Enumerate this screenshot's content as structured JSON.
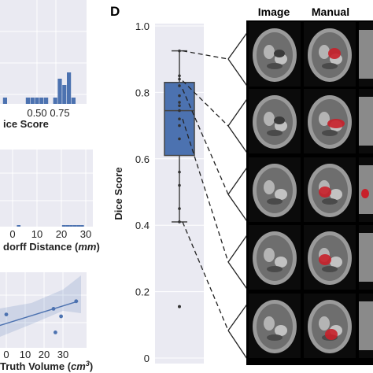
{
  "panel_letter": "D",
  "image_headers": [
    "Image",
    "Manual"
  ],
  "chart_data": [
    {
      "type": "bar",
      "panel": "histogram-dice",
      "xlabel": "Dice Score",
      "xlabel_visible": "ice Score",
      "x_ticks": [
        "0.50",
        "0.75"
      ],
      "bins": [
        {
          "x": 0.15,
          "count": 1
        },
        {
          "x": 0.4,
          "count": 1
        },
        {
          "x": 0.45,
          "count": 1
        },
        {
          "x": 0.5,
          "count": 1
        },
        {
          "x": 0.55,
          "count": 1
        },
        {
          "x": 0.6,
          "count": 1
        },
        {
          "x": 0.7,
          "count": 1
        },
        {
          "x": 0.75,
          "count": 4
        },
        {
          "x": 0.8,
          "count": 3
        },
        {
          "x": 0.85,
          "count": 5
        },
        {
          "x": 0.9,
          "count": 1
        }
      ],
      "color": "#4c72b0"
    },
    {
      "type": "bar",
      "panel": "histogram-hausdorff",
      "xlabel": "Hausdorff Distance (mm)",
      "xlabel_visible_pre": "dorff Distance (",
      "xlabel_unit": "mm",
      "xlabel_visible_post": ")",
      "x_ticks": [
        "0",
        "10",
        "20",
        "30"
      ],
      "xlim": [
        -3,
        35
      ],
      "bins": [
        {
          "x": 2.5,
          "count": 1
        },
        {
          "x": 21,
          "count": 1
        },
        {
          "x": 22.5,
          "count": 1
        },
        {
          "x": 24,
          "count": 1
        },
        {
          "x": 25.5,
          "count": 1
        },
        {
          "x": 27,
          "count": 1
        },
        {
          "x": 28.5,
          "count": 1
        }
      ],
      "color": "#4c72b0"
    },
    {
      "type": "scatter",
      "panel": "scatter-volume",
      "xlabel": "Truth Volume (cm3)",
      "xlabel_visible_pre": "Truth Volume (",
      "xlabel_unit": "cm",
      "xlabel_sup": "3",
      "xlabel_visible_post": ")",
      "x_ticks": [
        "0",
        "10",
        "20",
        "30"
      ],
      "xlim": [
        -4,
        40
      ],
      "points": [
        {
          "x": 0,
          "y": 0.52
        },
        {
          "x": 25,
          "y": 0.58
        },
        {
          "x": 29,
          "y": 0.5
        },
        {
          "x": 26,
          "y": 0.33
        },
        {
          "x": 37,
          "y": 0.66
        }
      ],
      "fit": [
        {
          "x": -4,
          "y": 0.4
        },
        {
          "x": 38,
          "y": 0.66
        }
      ],
      "color": "#4c72b0"
    },
    {
      "type": "box",
      "panel": "box-dice",
      "ylabel": "Dice Score",
      "ylim": [
        0,
        1.0
      ],
      "y_ticks": [
        "0",
        "0.2",
        "0.4",
        "0.6",
        "0.8",
        "1.0"
      ],
      "whisker_low": 0.41,
      "q1": 0.61,
      "median": 0.745,
      "q3": 0.83,
      "whisker_high": 0.925,
      "outliers": [
        0.155
      ],
      "points": [
        0.925,
        0.85,
        0.84,
        0.82,
        0.79,
        0.77,
        0.76,
        0.745,
        0.72,
        0.7,
        0.66,
        0.56,
        0.52,
        0.45,
        0.41
      ],
      "linked_points": [
        0.925,
        0.835,
        0.81,
        0.72,
        0.41
      ],
      "color": "#4c72b0"
    }
  ],
  "mri_rows": 5
}
